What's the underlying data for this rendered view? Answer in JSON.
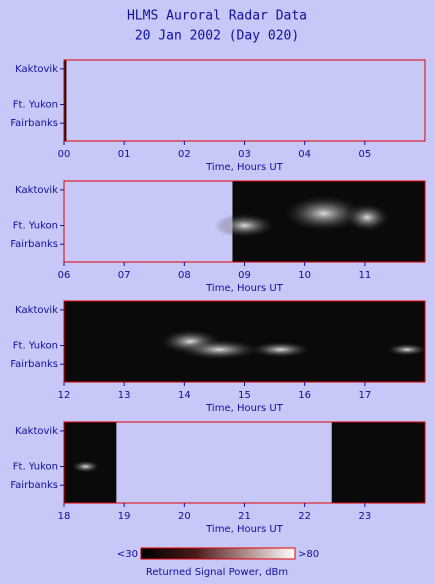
{
  "title": "HLMS Auroral Radar Data",
  "subtitle": "20 Jan 2002 (Day 020)",
  "chart_data": [
    {
      "type": "heatmap",
      "categories": [
        "Kaktovik",
        "Ft. Yukon",
        "Fairbanks"
      ],
      "xlabel": "Time, Hours UT",
      "xlim": [
        0,
        6
      ],
      "xticks": [
        {
          "value": 0,
          "label": "00"
        },
        {
          "value": 1,
          "label": "01"
        },
        {
          "value": 2,
          "label": "02"
        },
        {
          "value": 3,
          "label": "03"
        },
        {
          "value": 4,
          "label": "04"
        },
        {
          "value": 5,
          "label": "05"
        }
      ],
      "spans": [
        [
          0,
          0.04
        ]
      ]
    },
    {
      "type": "heatmap",
      "categories": [
        "Kaktovik",
        "Ft. Yukon",
        "Fairbanks"
      ],
      "xlabel": "Time, Hours UT",
      "xlim": [
        6,
        12
      ],
      "xticks": [
        {
          "value": 6,
          "label": "06"
        },
        {
          "value": 7,
          "label": "07"
        },
        {
          "value": 8,
          "label": "08"
        },
        {
          "value": 9,
          "label": "09"
        },
        10,
        11
      ],
      "spans": [
        [
          8.8,
          12
        ]
      ]
    },
    {
      "type": "heatmap",
      "categories": [
        "Kaktovik",
        "Ft. Yukon",
        "Fairbanks"
      ],
      "xlabel": "Time, Hours UT",
      "xlim": [
        12,
        18
      ],
      "xticks": [
        12,
        13,
        14,
        15,
        16,
        17
      ],
      "spans": [
        [
          12,
          18
        ]
      ]
    },
    {
      "type": "heatmap",
      "categories": [
        "Kaktovik",
        "Ft. Yukon",
        "Fairbanks"
      ],
      "xlabel": "Time, Hours UT",
      "xlim": [
        18,
        24
      ],
      "xticks": [
        18,
        19,
        20,
        21,
        22,
        23
      ],
      "spans": [
        [
          18,
          18.87
        ],
        [
          22.45,
          24
        ]
      ]
    }
  ],
  "colorbar": {
    "label": "Returned Signal Power, dBm",
    "ticks": [
      {
        "value": 30,
        "label": "<30"
      },
      {
        "value": 80,
        "label": ">80"
      }
    ]
  }
}
